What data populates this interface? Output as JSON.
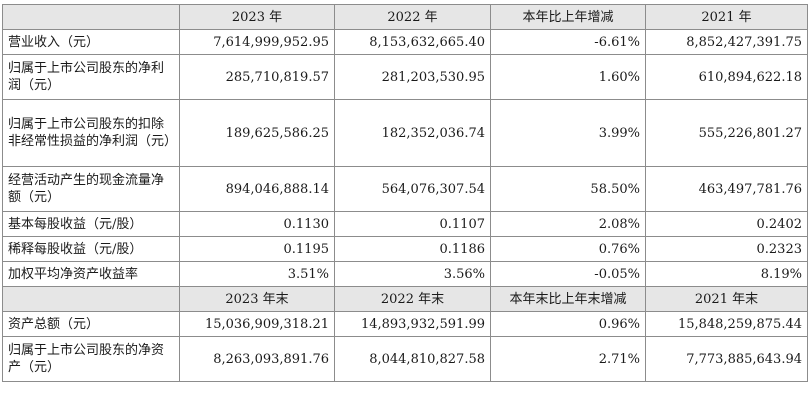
{
  "header1": [
    "2023 年",
    "2022 年",
    "本年比上年增减",
    "2021 年"
  ],
  "rows1": [
    {
      "label": "营业收入（元）",
      "v": [
        "7,614,999,952.95",
        "8,153,632,665.40",
        "-6.61%",
        "8,852,427,391.75"
      ]
    },
    {
      "label": "归属于上市公司股东的净利润（元）",
      "v": [
        "285,710,819.57",
        "281,203,530.95",
        "1.60%",
        "610,894,622.18"
      ]
    },
    {
      "label": "归属于上市公司股东的扣除非经常性损益的净利润（元）",
      "v": [
        "189,625,586.25",
        "182,352,036.74",
        "3.99%",
        "555,226,801.27"
      ]
    },
    {
      "label": "经营活动产生的现金流量净额（元）",
      "v": [
        "894,046,888.14",
        "564,076,307.54",
        "58.50%",
        "463,497,781.76"
      ]
    },
    {
      "label": "基本每股收益（元/股）",
      "v": [
        "0.1130",
        "0.1107",
        "2.08%",
        "0.2402"
      ]
    },
    {
      "label": "稀释每股收益（元/股）",
      "v": [
        "0.1195",
        "0.1186",
        "0.76%",
        "0.2323"
      ]
    },
    {
      "label": "加权平均净资产收益率",
      "v": [
        "3.51%",
        "3.56%",
        "-0.05%",
        "8.19%"
      ]
    }
  ],
  "header2": [
    "2023 年末",
    "2022 年末",
    "本年末比上年末增减",
    "2021 年末"
  ],
  "rows2": [
    {
      "label": "资产总额（元）",
      "v": [
        "15,036,909,318.21",
        "14,893,932,591.99",
        "0.96%",
        "15,848,259,875.44"
      ]
    },
    {
      "label": "归属于上市公司股东的净资产（元）",
      "v": [
        "8,263,093,891.76",
        "8,044,810,827.58",
        "2.71%",
        "7,773,885,643.94"
      ]
    }
  ]
}
